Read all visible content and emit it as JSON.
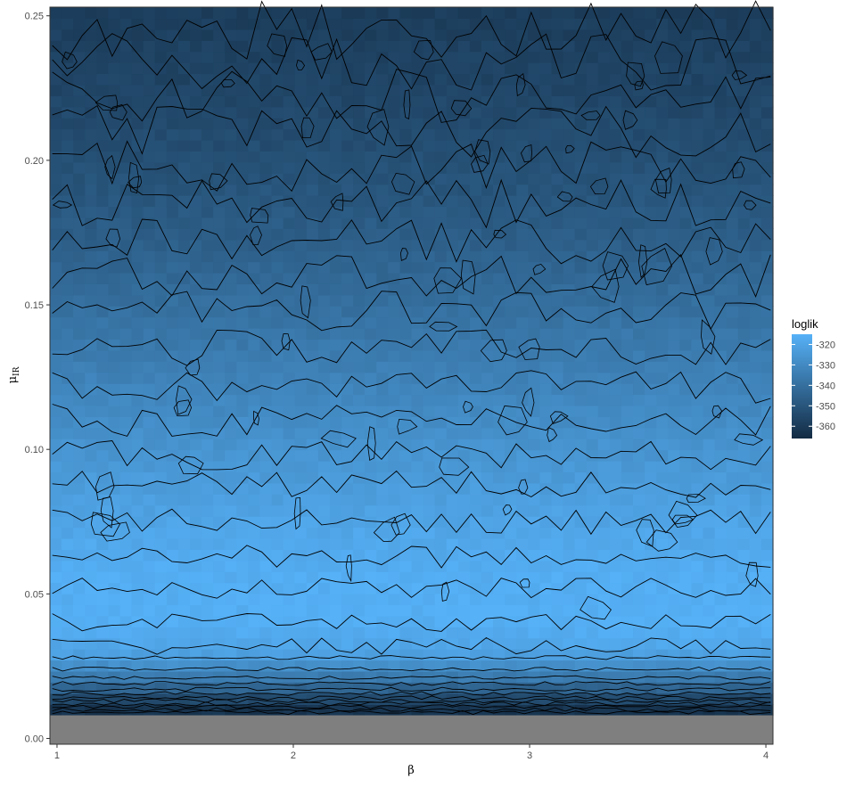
{
  "chart_data": {
    "type": "heatmap",
    "title": "",
    "xlabel": "β",
    "ylabel_main": "μ",
    "ylabel_sub": "IR",
    "xlim": [
      0.97,
      4.03
    ],
    "ylim": [
      -0.002,
      0.253
    ],
    "x_ticks": [
      1,
      2,
      3,
      4
    ],
    "x_tick_labels": [
      "1",
      "2",
      "3",
      "4"
    ],
    "y_ticks": [
      0.0,
      0.05,
      0.1,
      0.15,
      0.2,
      0.25
    ],
    "y_tick_labels": [
      "0.00",
      "0.05",
      "0.10",
      "0.15",
      "0.20",
      "0.25"
    ],
    "grid": true,
    "legend": {
      "title": "loglik",
      "position": "right",
      "breaks": [
        -320,
        -330,
        -340,
        -350,
        -360
      ],
      "labels": [
        "-320",
        "-330",
        "-340",
        "-350",
        "-360"
      ],
      "range": [
        -366,
        -315
      ]
    },
    "na_band": {
      "y_from": -0.002,
      "y_to": 0.008,
      "color": "#7f7f7f"
    },
    "gradient": {
      "low_color": "#132b43",
      "high_color": "#56b1f7"
    },
    "loglik_profile": [
      {
        "mu": 0.008,
        "loglik": -366
      },
      {
        "mu": 0.012,
        "loglik": -358
      },
      {
        "mu": 0.016,
        "loglik": -348
      },
      {
        "mu": 0.02,
        "loglik": -338
      },
      {
        "mu": 0.025,
        "loglik": -328
      },
      {
        "mu": 0.03,
        "loglik": -320
      },
      {
        "mu": 0.04,
        "loglik": -316
      },
      {
        "mu": 0.05,
        "loglik": -316
      },
      {
        "mu": 0.06,
        "loglik": -317
      },
      {
        "mu": 0.075,
        "loglik": -320
      },
      {
        "mu": 0.1,
        "loglik": -326
      },
      {
        "mu": 0.125,
        "loglik": -333
      },
      {
        "mu": 0.15,
        "loglik": -340
      },
      {
        "mu": 0.175,
        "loglik": -347
      },
      {
        "mu": 0.2,
        "loglik": -352
      },
      {
        "mu": 0.225,
        "loglik": -356
      },
      {
        "mu": 0.253,
        "loglik": -359
      }
    ],
    "contour_levels_mu": [
      0.009,
      0.01,
      0.011,
      0.012,
      0.013,
      0.014,
      0.0155,
      0.017,
      0.019,
      0.021,
      0.024,
      0.028,
      0.032,
      0.04,
      0.052,
      0.063,
      0.075,
      0.088,
      0.098,
      0.11,
      0.122,
      0.135,
      0.148,
      0.16,
      0.172,
      0.185,
      0.198,
      0.21,
      0.222,
      0.234,
      0.245
    ]
  }
}
